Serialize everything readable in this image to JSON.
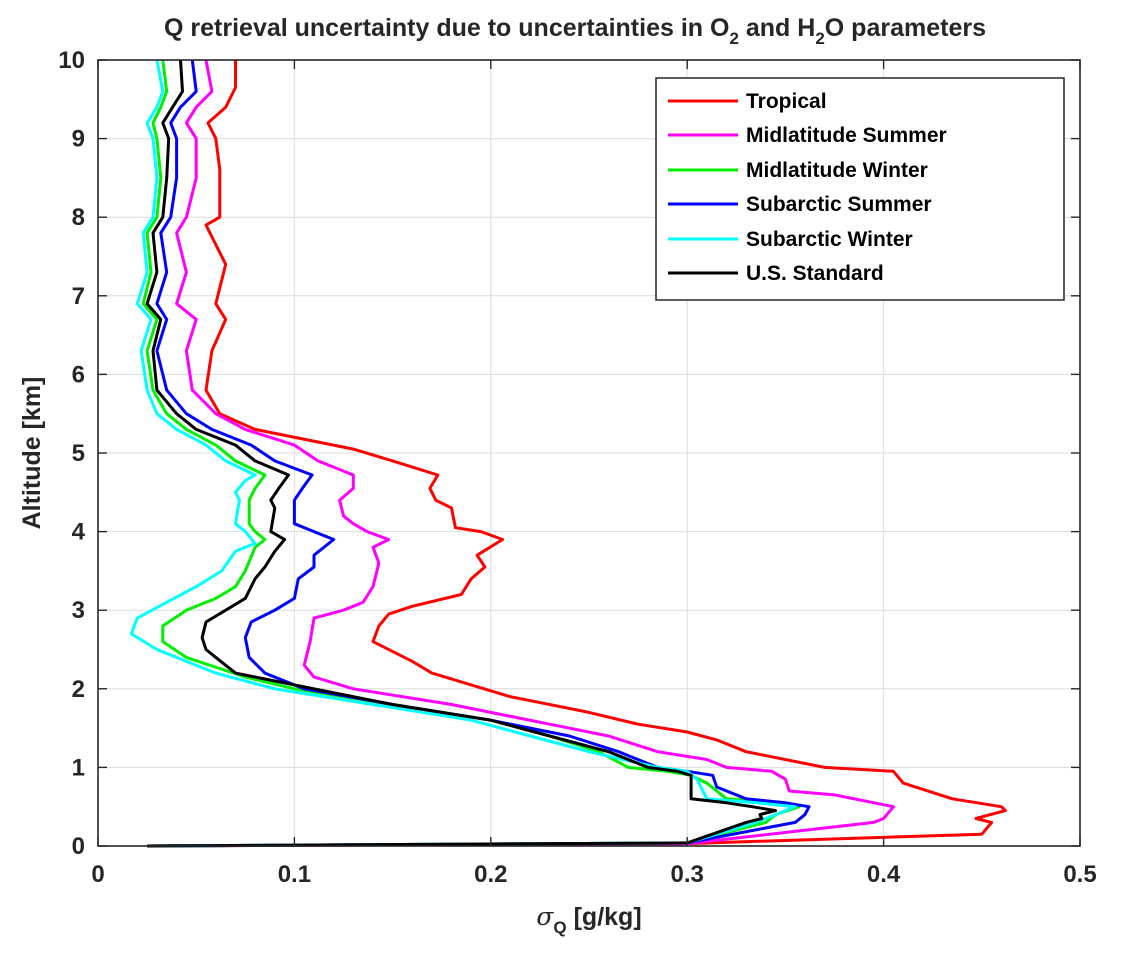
{
  "chart_data": {
    "type": "line",
    "title_parts": [
      "Q retrieval uncertainty due to uncertainties in O",
      "2",
      " and H",
      "2",
      "O parameters"
    ],
    "xlabel_symbol": "σ",
    "xlabel_sub": "Q",
    "xlabel_rest": " [g/kg]",
    "ylabel": "Altitude [km]",
    "xlim": [
      0,
      0.5
    ],
    "ylim": [
      0,
      10
    ],
    "xticks": [
      0,
      0.1,
      0.2,
      0.3,
      0.4,
      0.5
    ],
    "yticks": [
      0,
      1,
      2,
      3,
      4,
      5,
      6,
      7,
      8,
      9,
      10
    ],
    "xtick_labels": [
      "0",
      "0.1",
      "0.2",
      "0.3",
      "0.4",
      "0.5"
    ],
    "ytick_labels": [
      "0",
      "1",
      "2",
      "3",
      "4",
      "5",
      "6",
      "7",
      "8",
      "9",
      "10"
    ],
    "grid": true,
    "legend_position": "top-right",
    "series": [
      {
        "name": "Tropical",
        "color": "#ff0000",
        "points": [
          [
            0.025,
            0
          ],
          [
            0.3,
            0.03
          ],
          [
            0.45,
            0.15
          ],
          [
            0.455,
            0.3
          ],
          [
            0.447,
            0.35
          ],
          [
            0.462,
            0.45
          ],
          [
            0.46,
            0.5
          ],
          [
            0.435,
            0.6
          ],
          [
            0.41,
            0.8
          ],
          [
            0.405,
            0.95
          ],
          [
            0.37,
            1.0
          ],
          [
            0.33,
            1.2
          ],
          [
            0.315,
            1.35
          ],
          [
            0.3,
            1.45
          ],
          [
            0.275,
            1.55
          ],
          [
            0.25,
            1.7
          ],
          [
            0.21,
            1.9
          ],
          [
            0.17,
            2.2
          ],
          [
            0.16,
            2.35
          ],
          [
            0.14,
            2.6
          ],
          [
            0.143,
            2.8
          ],
          [
            0.148,
            2.95
          ],
          [
            0.16,
            3.05
          ],
          [
            0.185,
            3.2
          ],
          [
            0.19,
            3.4
          ],
          [
            0.197,
            3.55
          ],
          [
            0.193,
            3.7
          ],
          [
            0.206,
            3.9
          ],
          [
            0.195,
            4.0
          ],
          [
            0.182,
            4.05
          ],
          [
            0.18,
            4.3
          ],
          [
            0.172,
            4.4
          ],
          [
            0.169,
            4.55
          ],
          [
            0.173,
            4.72
          ],
          [
            0.15,
            4.9
          ],
          [
            0.13,
            5.05
          ],
          [
            0.08,
            5.3
          ],
          [
            0.062,
            5.5
          ],
          [
            0.055,
            5.8
          ],
          [
            0.058,
            6.3
          ],
          [
            0.065,
            6.7
          ],
          [
            0.06,
            6.9
          ],
          [
            0.065,
            7.4
          ],
          [
            0.055,
            7.9
          ],
          [
            0.062,
            8.0
          ],
          [
            0.062,
            8.6
          ],
          [
            0.06,
            9.0
          ],
          [
            0.056,
            9.2
          ],
          [
            0.065,
            9.4
          ],
          [
            0.07,
            9.65
          ],
          [
            0.07,
            10.0
          ]
        ]
      },
      {
        "name": "Midlatitude Summer",
        "color": "#ff00ff",
        "points": [
          [
            0.025,
            0
          ],
          [
            0.3,
            0.03
          ],
          [
            0.395,
            0.3
          ],
          [
            0.4,
            0.35
          ],
          [
            0.405,
            0.5
          ],
          [
            0.375,
            0.65
          ],
          [
            0.352,
            0.7
          ],
          [
            0.35,
            0.85
          ],
          [
            0.343,
            0.95
          ],
          [
            0.32,
            1.0
          ],
          [
            0.31,
            1.1
          ],
          [
            0.285,
            1.2
          ],
          [
            0.26,
            1.4
          ],
          [
            0.23,
            1.55
          ],
          [
            0.18,
            1.8
          ],
          [
            0.13,
            2.0
          ],
          [
            0.11,
            2.15
          ],
          [
            0.105,
            2.3
          ],
          [
            0.108,
            2.6
          ],
          [
            0.11,
            2.9
          ],
          [
            0.125,
            3.0
          ],
          [
            0.135,
            3.1
          ],
          [
            0.14,
            3.3
          ],
          [
            0.143,
            3.6
          ],
          [
            0.14,
            3.8
          ],
          [
            0.148,
            3.9
          ],
          [
            0.137,
            4.0
          ],
          [
            0.13,
            4.1
          ],
          [
            0.125,
            4.2
          ],
          [
            0.123,
            4.4
          ],
          [
            0.13,
            4.55
          ],
          [
            0.13,
            4.72
          ],
          [
            0.112,
            4.9
          ],
          [
            0.1,
            5.1
          ],
          [
            0.075,
            5.3
          ],
          [
            0.06,
            5.5
          ],
          [
            0.048,
            5.8
          ],
          [
            0.045,
            6.3
          ],
          [
            0.05,
            6.7
          ],
          [
            0.04,
            6.9
          ],
          [
            0.045,
            7.3
          ],
          [
            0.04,
            7.8
          ],
          [
            0.045,
            8.0
          ],
          [
            0.05,
            8.5
          ],
          [
            0.05,
            9.0
          ],
          [
            0.045,
            9.2
          ],
          [
            0.05,
            9.4
          ],
          [
            0.058,
            9.6
          ],
          [
            0.055,
            10.0
          ]
        ]
      },
      {
        "name": "Midlatitude Winter",
        "color": "#00ee00",
        "points": [
          [
            0.025,
            0
          ],
          [
            0.3,
            0.04
          ],
          [
            0.34,
            0.3
          ],
          [
            0.345,
            0.4
          ],
          [
            0.357,
            0.5
          ],
          [
            0.35,
            0.55
          ],
          [
            0.32,
            0.6
          ],
          [
            0.31,
            0.8
          ],
          [
            0.302,
            0.9
          ],
          [
            0.29,
            0.95
          ],
          [
            0.27,
            1.0
          ],
          [
            0.255,
            1.2
          ],
          [
            0.23,
            1.4
          ],
          [
            0.2,
            1.6
          ],
          [
            0.15,
            1.8
          ],
          [
            0.1,
            2.0
          ],
          [
            0.075,
            2.15
          ],
          [
            0.045,
            2.4
          ],
          [
            0.033,
            2.6
          ],
          [
            0.033,
            2.8
          ],
          [
            0.045,
            3.0
          ],
          [
            0.06,
            3.15
          ],
          [
            0.07,
            3.3
          ],
          [
            0.075,
            3.5
          ],
          [
            0.08,
            3.8
          ],
          [
            0.085,
            3.9
          ],
          [
            0.08,
            4.0
          ],
          [
            0.077,
            4.1
          ],
          [
            0.077,
            4.4
          ],
          [
            0.08,
            4.55
          ],
          [
            0.085,
            4.72
          ],
          [
            0.07,
            4.9
          ],
          [
            0.06,
            5.1
          ],
          [
            0.045,
            5.3
          ],
          [
            0.035,
            5.5
          ],
          [
            0.028,
            5.8
          ],
          [
            0.025,
            6.3
          ],
          [
            0.03,
            6.7
          ],
          [
            0.023,
            6.9
          ],
          [
            0.027,
            7.3
          ],
          [
            0.025,
            7.8
          ],
          [
            0.03,
            8.0
          ],
          [
            0.032,
            8.5
          ],
          [
            0.03,
            9.0
          ],
          [
            0.028,
            9.2
          ],
          [
            0.032,
            9.4
          ],
          [
            0.035,
            9.6
          ],
          [
            0.033,
            10.0
          ]
        ]
      },
      {
        "name": "Subarctic Summer",
        "color": "#0000ff",
        "points": [
          [
            0.025,
            0
          ],
          [
            0.3,
            0.04
          ],
          [
            0.355,
            0.3
          ],
          [
            0.36,
            0.4
          ],
          [
            0.362,
            0.5
          ],
          [
            0.35,
            0.55
          ],
          [
            0.33,
            0.6
          ],
          [
            0.315,
            0.75
          ],
          [
            0.313,
            0.9
          ],
          [
            0.3,
            0.95
          ],
          [
            0.285,
            1.0
          ],
          [
            0.265,
            1.2
          ],
          [
            0.24,
            1.4
          ],
          [
            0.2,
            1.6
          ],
          [
            0.15,
            1.8
          ],
          [
            0.105,
            2.0
          ],
          [
            0.085,
            2.2
          ],
          [
            0.077,
            2.4
          ],
          [
            0.075,
            2.65
          ],
          [
            0.078,
            2.85
          ],
          [
            0.09,
            3.0
          ],
          [
            0.1,
            3.15
          ],
          [
            0.102,
            3.4
          ],
          [
            0.11,
            3.55
          ],
          [
            0.11,
            3.7
          ],
          [
            0.12,
            3.9
          ],
          [
            0.11,
            4.0
          ],
          [
            0.1,
            4.1
          ],
          [
            0.1,
            4.4
          ],
          [
            0.104,
            4.55
          ],
          [
            0.109,
            4.72
          ],
          [
            0.09,
            4.9
          ],
          [
            0.078,
            5.1
          ],
          [
            0.058,
            5.3
          ],
          [
            0.045,
            5.5
          ],
          [
            0.035,
            5.8
          ],
          [
            0.03,
            6.3
          ],
          [
            0.035,
            6.7
          ],
          [
            0.03,
            6.9
          ],
          [
            0.035,
            7.3
          ],
          [
            0.032,
            7.8
          ],
          [
            0.037,
            8.0
          ],
          [
            0.04,
            8.5
          ],
          [
            0.04,
            9.0
          ],
          [
            0.037,
            9.2
          ],
          [
            0.042,
            9.4
          ],
          [
            0.05,
            9.6
          ],
          [
            0.048,
            10.0
          ]
        ]
      },
      {
        "name": "Subarctic Winter",
        "color": "#00ffff",
        "points": [
          [
            0.025,
            0
          ],
          [
            0.3,
            0.04
          ],
          [
            0.335,
            0.3
          ],
          [
            0.34,
            0.35
          ],
          [
            0.355,
            0.5
          ],
          [
            0.335,
            0.55
          ],
          [
            0.31,
            0.6
          ],
          [
            0.305,
            0.85
          ],
          [
            0.3,
            0.95
          ],
          [
            0.285,
            1.0
          ],
          [
            0.25,
            1.2
          ],
          [
            0.22,
            1.4
          ],
          [
            0.19,
            1.6
          ],
          [
            0.14,
            1.8
          ],
          [
            0.09,
            2.0
          ],
          [
            0.06,
            2.2
          ],
          [
            0.03,
            2.5
          ],
          [
            0.017,
            2.7
          ],
          [
            0.02,
            2.9
          ],
          [
            0.035,
            3.1
          ],
          [
            0.05,
            3.3
          ],
          [
            0.063,
            3.5
          ],
          [
            0.07,
            3.75
          ],
          [
            0.08,
            3.85
          ],
          [
            0.075,
            4.0
          ],
          [
            0.07,
            4.1
          ],
          [
            0.072,
            4.4
          ],
          [
            0.07,
            4.5
          ],
          [
            0.075,
            4.65
          ],
          [
            0.08,
            4.72
          ],
          [
            0.065,
            4.9
          ],
          [
            0.055,
            5.1
          ],
          [
            0.04,
            5.3
          ],
          [
            0.03,
            5.5
          ],
          [
            0.025,
            5.8
          ],
          [
            0.022,
            6.3
          ],
          [
            0.027,
            6.7
          ],
          [
            0.02,
            6.9
          ],
          [
            0.025,
            7.3
          ],
          [
            0.023,
            7.8
          ],
          [
            0.028,
            8.0
          ],
          [
            0.03,
            8.5
          ],
          [
            0.028,
            9.0
          ],
          [
            0.025,
            9.2
          ],
          [
            0.03,
            9.4
          ],
          [
            0.033,
            9.6
          ],
          [
            0.03,
            10.0
          ]
        ]
      },
      {
        "name": "U.S. Standard",
        "color": "#000000",
        "points": [
          [
            0.025,
            0
          ],
          [
            0.3,
            0.04
          ],
          [
            0.33,
            0.3
          ],
          [
            0.338,
            0.35
          ],
          [
            0.337,
            0.4
          ],
          [
            0.345,
            0.45
          ],
          [
            0.333,
            0.5
          ],
          [
            0.32,
            0.55
          ],
          [
            0.302,
            0.6
          ],
          [
            0.302,
            0.9
          ],
          [
            0.295,
            0.95
          ],
          [
            0.28,
            1.0
          ],
          [
            0.26,
            1.2
          ],
          [
            0.23,
            1.4
          ],
          [
            0.2,
            1.6
          ],
          [
            0.15,
            1.8
          ],
          [
            0.11,
            2.0
          ],
          [
            0.07,
            2.2
          ],
          [
            0.06,
            2.4
          ],
          [
            0.055,
            2.5
          ],
          [
            0.053,
            2.65
          ],
          [
            0.055,
            2.85
          ],
          [
            0.065,
            3.0
          ],
          [
            0.075,
            3.15
          ],
          [
            0.08,
            3.4
          ],
          [
            0.085,
            3.55
          ],
          [
            0.09,
            3.75
          ],
          [
            0.095,
            3.9
          ],
          [
            0.088,
            4.0
          ],
          [
            0.09,
            4.3
          ],
          [
            0.088,
            4.4
          ],
          [
            0.092,
            4.55
          ],
          [
            0.097,
            4.72
          ],
          [
            0.08,
            4.9
          ],
          [
            0.07,
            5.1
          ],
          [
            0.05,
            5.3
          ],
          [
            0.04,
            5.5
          ],
          [
            0.03,
            5.8
          ],
          [
            0.028,
            6.3
          ],
          [
            0.032,
            6.7
          ],
          [
            0.025,
            6.9
          ],
          [
            0.03,
            7.3
          ],
          [
            0.028,
            7.8
          ],
          [
            0.033,
            8.0
          ],
          [
            0.035,
            8.5
          ],
          [
            0.036,
            9.0
          ],
          [
            0.033,
            9.2
          ],
          [
            0.038,
            9.4
          ],
          [
            0.043,
            9.6
          ],
          [
            0.042,
            10.0
          ]
        ]
      }
    ]
  }
}
